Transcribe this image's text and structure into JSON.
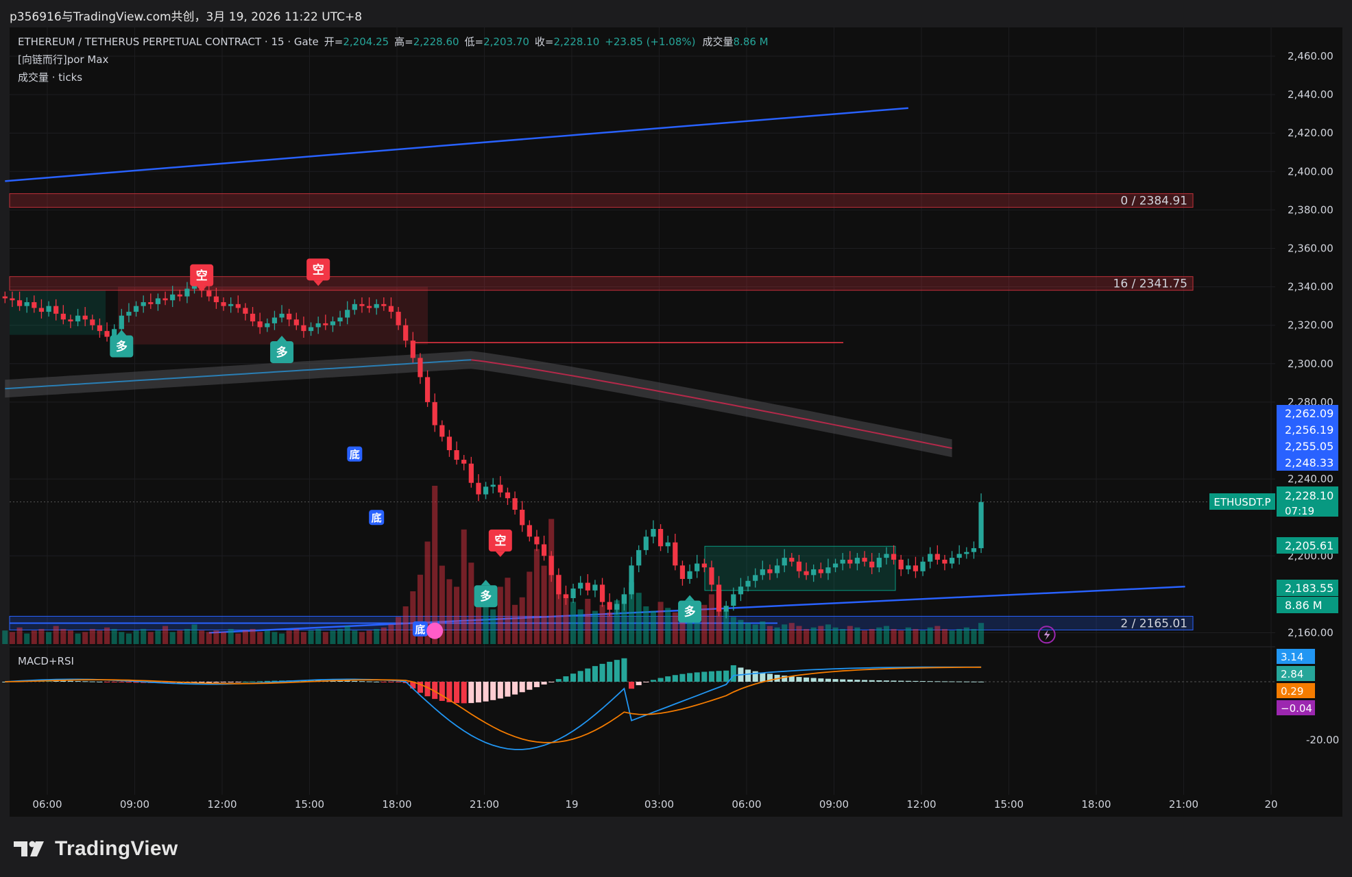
{
  "header": {
    "share_text": "p356916与TradingView.com共创，3月 19, 2026 11:22 UTC+8"
  },
  "legend": {
    "symbol": "ETHEREUM / TETHERUS PERPETUAL CONTRACT · 15 · Gate",
    "open_label": "开=",
    "open": "2,204.25",
    "high_label": "高=",
    "high": "2,228.60",
    "low_label": "低=",
    "low": "2,203.70",
    "close_label": "收=",
    "close": "2,228.10",
    "change": "+23.85 (+1.08%)",
    "volume_label": "成交量",
    "volume": "8.86 M",
    "indicator_line": "[向链而行]por Max",
    "volume_line": "成交量 · ticks"
  },
  "chart_data": {
    "type": "candlestick",
    "symbol": "ETHUSDT.P",
    "interval": "15",
    "y_range": [
      2150,
      2470
    ],
    "y_ticks": [
      2460,
      2440,
      2420,
      2400,
      2380,
      2360,
      2340,
      2320,
      2300,
      2280,
      2240,
      2200,
      2160
    ],
    "y_tick_labels": [
      "2,460.00",
      "2,440.00",
      "2,420.00",
      "2,400.00",
      "2,380.00",
      "2,360.00",
      "2,340.00",
      "2,320.00",
      "2,300.00",
      "2,280.00",
      "2,240.00",
      "2,200.00",
      "2,160.00"
    ],
    "x_tick_labels": [
      "06:00",
      "09:00",
      "12:00",
      "15:00",
      "18:00",
      "21:00",
      "19",
      "03:00",
      "06:00",
      "09:00",
      "12:00",
      "15:00",
      "18:00",
      "21:00",
      "20"
    ],
    "hours_per_x_tick": 3,
    "candle_interval_hours": 0.25,
    "last_candle_index": 143,
    "closes": [
      2334,
      2333,
      2330,
      2332,
      2329,
      2327,
      2330,
      2326,
      2323,
      2322,
      2325,
      2323,
      2320,
      2317,
      2314,
      2318,
      2325,
      2327,
      2330,
      2332,
      2331,
      2334,
      2333,
      2336,
      2335,
      2339,
      2341,
      2338,
      2335,
      2332,
      2330,
      2331,
      2329,
      2326,
      2322,
      2319,
      2321,
      2324,
      2326,
      2323,
      2320,
      2317,
      2319,
      2321,
      2320,
      2322,
      2324,
      2328,
      2331,
      2330,
      2329,
      2331,
      2330,
      2327,
      2320,
      2312,
      2303,
      2293,
      2280,
      2268,
      2262,
      2255,
      2250,
      2248,
      2238,
      2232,
      2236,
      2237,
      2233,
      2230,
      2224,
      2216,
      2210,
      2206,
      2200,
      2190,
      2180,
      2178,
      2183,
      2186,
      2182,
      2185,
      2176,
      2172,
      2175,
      2180,
      2195,
      2203,
      2210,
      2214,
      2205,
      2207,
      2195,
      2188,
      2192,
      2196,
      2194,
      2185,
      2171,
      2174,
      2180,
      2184,
      2187,
      2190,
      2193,
      2191,
      2195,
      2199,
      2197,
      2192,
      2190,
      2193,
      2191,
      2194,
      2196,
      2198,
      2196,
      2199,
      2197,
      2194,
      2199,
      2201,
      2198,
      2193,
      2195,
      2192,
      2197,
      2201,
      2198,
      2196,
      2199,
      2201,
      2202,
      2204,
      2228
    ],
    "volumes": [
      0.9,
      0.8,
      1.1,
      0.7,
      0.9,
      1.0,
      0.8,
      1.2,
      1.0,
      0.9,
      0.7,
      0.8,
      1.0,
      0.9,
      1.1,
      1.0,
      0.8,
      0.7,
      0.9,
      1.0,
      0.8,
      0.9,
      1.2,
      0.8,
      0.9,
      1.0,
      1.3,
      0.9,
      0.8,
      0.9,
      0.8,
      1.0,
      0.7,
      0.9,
      1.0,
      0.8,
      0.9,
      0.8,
      0.7,
      0.9,
      1.0,
      0.8,
      0.9,
      1.0,
      0.8,
      0.9,
      1.0,
      1.2,
      0.9,
      0.8,
      0.9,
      1.0,
      1.1,
      1.3,
      1.8,
      2.5,
      3.5,
      4.6,
      6.8,
      10.5,
      5.2,
      4.3,
      3.8,
      7.6,
      5.4,
      3.6,
      2.9,
      2.3,
      3.8,
      4.4,
      2.6,
      3.1,
      4.8,
      6.3,
      5.2,
      8.3,
      4.6,
      3.3,
      2.8,
      2.3,
      3.0,
      2.2,
      2.6,
      2.1,
      2.9,
      3.3,
      4.1,
      3.4,
      2.5,
      2.2,
      2.8,
      2.4,
      2.1,
      2.3,
      1.9,
      2.0,
      2.6,
      3.3,
      3.6,
      2.2,
      1.8,
      1.6,
      1.4,
      1.3,
      1.5,
      1.2,
      1.1,
      1.3,
      1.4,
      1.2,
      1.0,
      1.1,
      1.2,
      1.3,
      1.1,
      1.0,
      1.2,
      1.1,
      0.9,
      1.0,
      1.1,
      1.2,
      1.0,
      0.9,
      1.1,
      1.0,
      0.9,
      1.1,
      1.2,
      1.0,
      0.9,
      1.0,
      1.1,
      1.0,
      1.4
    ],
    "blue_trendline_upper": {
      "from": [
        0,
        2395
      ],
      "to": [
        124,
        2433
      ]
    },
    "blue_trendline_lower": {
      "from": [
        28,
        2160
      ],
      "to": [
        162,
        2184
      ]
    },
    "horizontal_zones": [
      {
        "label": "0 / 2384.91",
        "price": 2384.91,
        "color": "#f23645"
      },
      {
        "label": "16 / 2341.75",
        "price": 2341.75,
        "color": "#f23645"
      },
      {
        "label": "2 / 2165.01",
        "price": 2165.01,
        "color": "#2962ff"
      }
    ],
    "signals": [
      {
        "text": "空",
        "kind": "sell",
        "index": 27,
        "price": 2346
      },
      {
        "text": "空",
        "kind": "sell",
        "index": 43,
        "price": 2349
      },
      {
        "text": "多",
        "kind": "buy",
        "index": 16,
        "price": 2309
      },
      {
        "text": "多",
        "kind": "buy",
        "index": 38,
        "price": 2306
      },
      {
        "text": "多",
        "kind": "buy",
        "index": 66,
        "price": 2179
      },
      {
        "text": "多",
        "kind": "buy",
        "index": 94,
        "price": 2171
      },
      {
        "text": "空",
        "kind": "sell",
        "index": 68,
        "price": 2208
      },
      {
        "text": "底",
        "kind": "bottom",
        "index": 48,
        "price": 2253
      },
      {
        "text": "底",
        "kind": "bottom",
        "index": 51,
        "price": 2220
      },
      {
        "text": "底",
        "kind": "bottom",
        "index": 57,
        "price": 2162
      }
    ],
    "price_labels": [
      {
        "text": "2,262.09",
        "color": "#2962ff"
      },
      {
        "text": "2,256.19",
        "color": "#2962ff"
      },
      {
        "text": "2,255.05",
        "color": "#2962ff"
      },
      {
        "text": "2,248.33",
        "color": "#2962ff"
      },
      {
        "text": "2,228.10",
        "subtext": "07:19",
        "color": "#089981",
        "tag": "ETHUSDT.P"
      },
      {
        "text": "2,205.61",
        "color": "#089981"
      },
      {
        "text": "2,183.55",
        "color": "#089981"
      },
      {
        "text": "8.86 M",
        "color": "#089981"
      }
    ],
    "macd_rsi": {
      "title": "MACD+RSI",
      "y_tick_labels": [
        "-20.00"
      ],
      "value_labels": [
        {
          "text": "3.14",
          "color": "#2196f3"
        },
        {
          "text": "2.84",
          "color": "#26a69a"
        },
        {
          "text": "0.29",
          "color": "#f57c00"
        },
        {
          "text": "−0.04",
          "color": "#9c27b0"
        }
      ]
    }
  },
  "footer": {
    "brand": "TradingView"
  }
}
